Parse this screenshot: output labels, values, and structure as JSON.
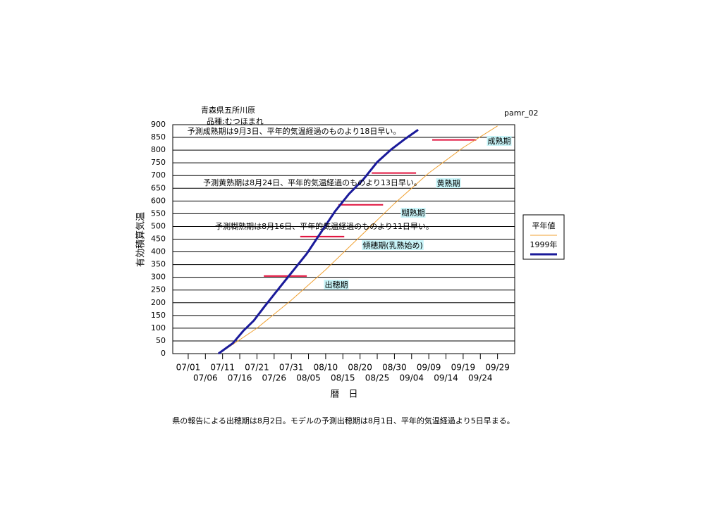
{
  "chart_data": {
    "type": "line",
    "title": "青森県五所川原",
    "subtitle": "品種:むつほまれ",
    "id_label": "pamr_02",
    "y_label": "有効積算気温",
    "x_label": "暦　日",
    "footnote": "県の報告による出穂期は8月2日。モデルの予測出穂期は8月1日、平年的気温経過より5日早まる。",
    "xlim": [
      -4.5,
      95
    ],
    "ylim": [
      0,
      900
    ],
    "yticks": [
      0,
      50,
      100,
      150,
      200,
      250,
      300,
      350,
      400,
      450,
      500,
      550,
      600,
      650,
      700,
      750,
      800,
      850,
      900
    ],
    "xticks": [
      {
        "value": 0,
        "label": "07/01"
      },
      {
        "value": 5,
        "label": "07/06"
      },
      {
        "value": 10,
        "label": "07/11"
      },
      {
        "value": 15,
        "label": "07/16"
      },
      {
        "value": 20,
        "label": "07/21"
      },
      {
        "value": 25,
        "label": "07/26"
      },
      {
        "value": 30,
        "label": "07/31"
      },
      {
        "value": 35,
        "label": "08/05"
      },
      {
        "value": 40,
        "label": "08/10"
      },
      {
        "value": 45,
        "label": "08/15"
      },
      {
        "value": 50,
        "label": "08/20"
      },
      {
        "value": 55,
        "label": "08/25"
      },
      {
        "value": 60,
        "label": "08/30"
      },
      {
        "value": 65,
        "label": "09/04"
      },
      {
        "value": 70,
        "label": "09/09"
      },
      {
        "value": 75,
        "label": "09/14"
      },
      {
        "value": 80,
        "label": "09/19"
      },
      {
        "value": 85,
        "label": "09/24"
      },
      {
        "value": 90,
        "label": "09/29"
      }
    ],
    "grid": true,
    "series": [
      {
        "name": "平年値",
        "color": "#f0a030",
        "width": 1,
        "x": [
          9,
          20,
          30,
          40,
          50,
          60,
          70,
          80,
          90
        ],
        "values": [
          0,
          100,
          210,
          330,
          460,
          590,
          710,
          810,
          895
        ]
      },
      {
        "name": "1999年",
        "color": "#1a1a9a",
        "width": 3,
        "x": [
          8.8,
          13,
          16,
          19.1,
          22.2,
          26.3,
          30.4,
          34.5,
          38.6,
          42.7,
          46.8,
          50.9,
          55,
          59.1,
          63.2,
          66.9
        ],
        "values": [
          0,
          41,
          89,
          130,
          185,
          255,
          324,
          393,
          476,
          559,
          628,
          684,
          753,
          803,
          845,
          880
        ]
      }
    ],
    "stages": [
      {
        "name": "出穂期",
        "value": 305,
        "x": [
          22,
          34.5
        ]
      },
      {
        "name": "傾穂期(乳熟始め)",
        "value": 460,
        "x": [
          32.6,
          45.4
        ]
      },
      {
        "name": "糊熟期",
        "value": 585,
        "x": [
          43.7,
          56.7
        ]
      },
      {
        "name": "黄熟期",
        "value": 710,
        "x": [
          53.4,
          66.3
        ]
      },
      {
        "name": "成熟期",
        "value": 840,
        "x": [
          71,
          83.8
        ]
      }
    ],
    "stage_color": "#e0103c",
    "annotations": [
      "予測成熟期は9月3日、平年的気温経過のものより18日早い。",
      "予測黄熟期は8月24日、平年的気温経過のものより13日早い。",
      "予測糊熟期は8月16日、平年的気温経過のものより11日早い。"
    ],
    "annotation_color": "#e040a0",
    "footnote_color": "#1010c0",
    "label_bg": "#c8f4f8"
  }
}
